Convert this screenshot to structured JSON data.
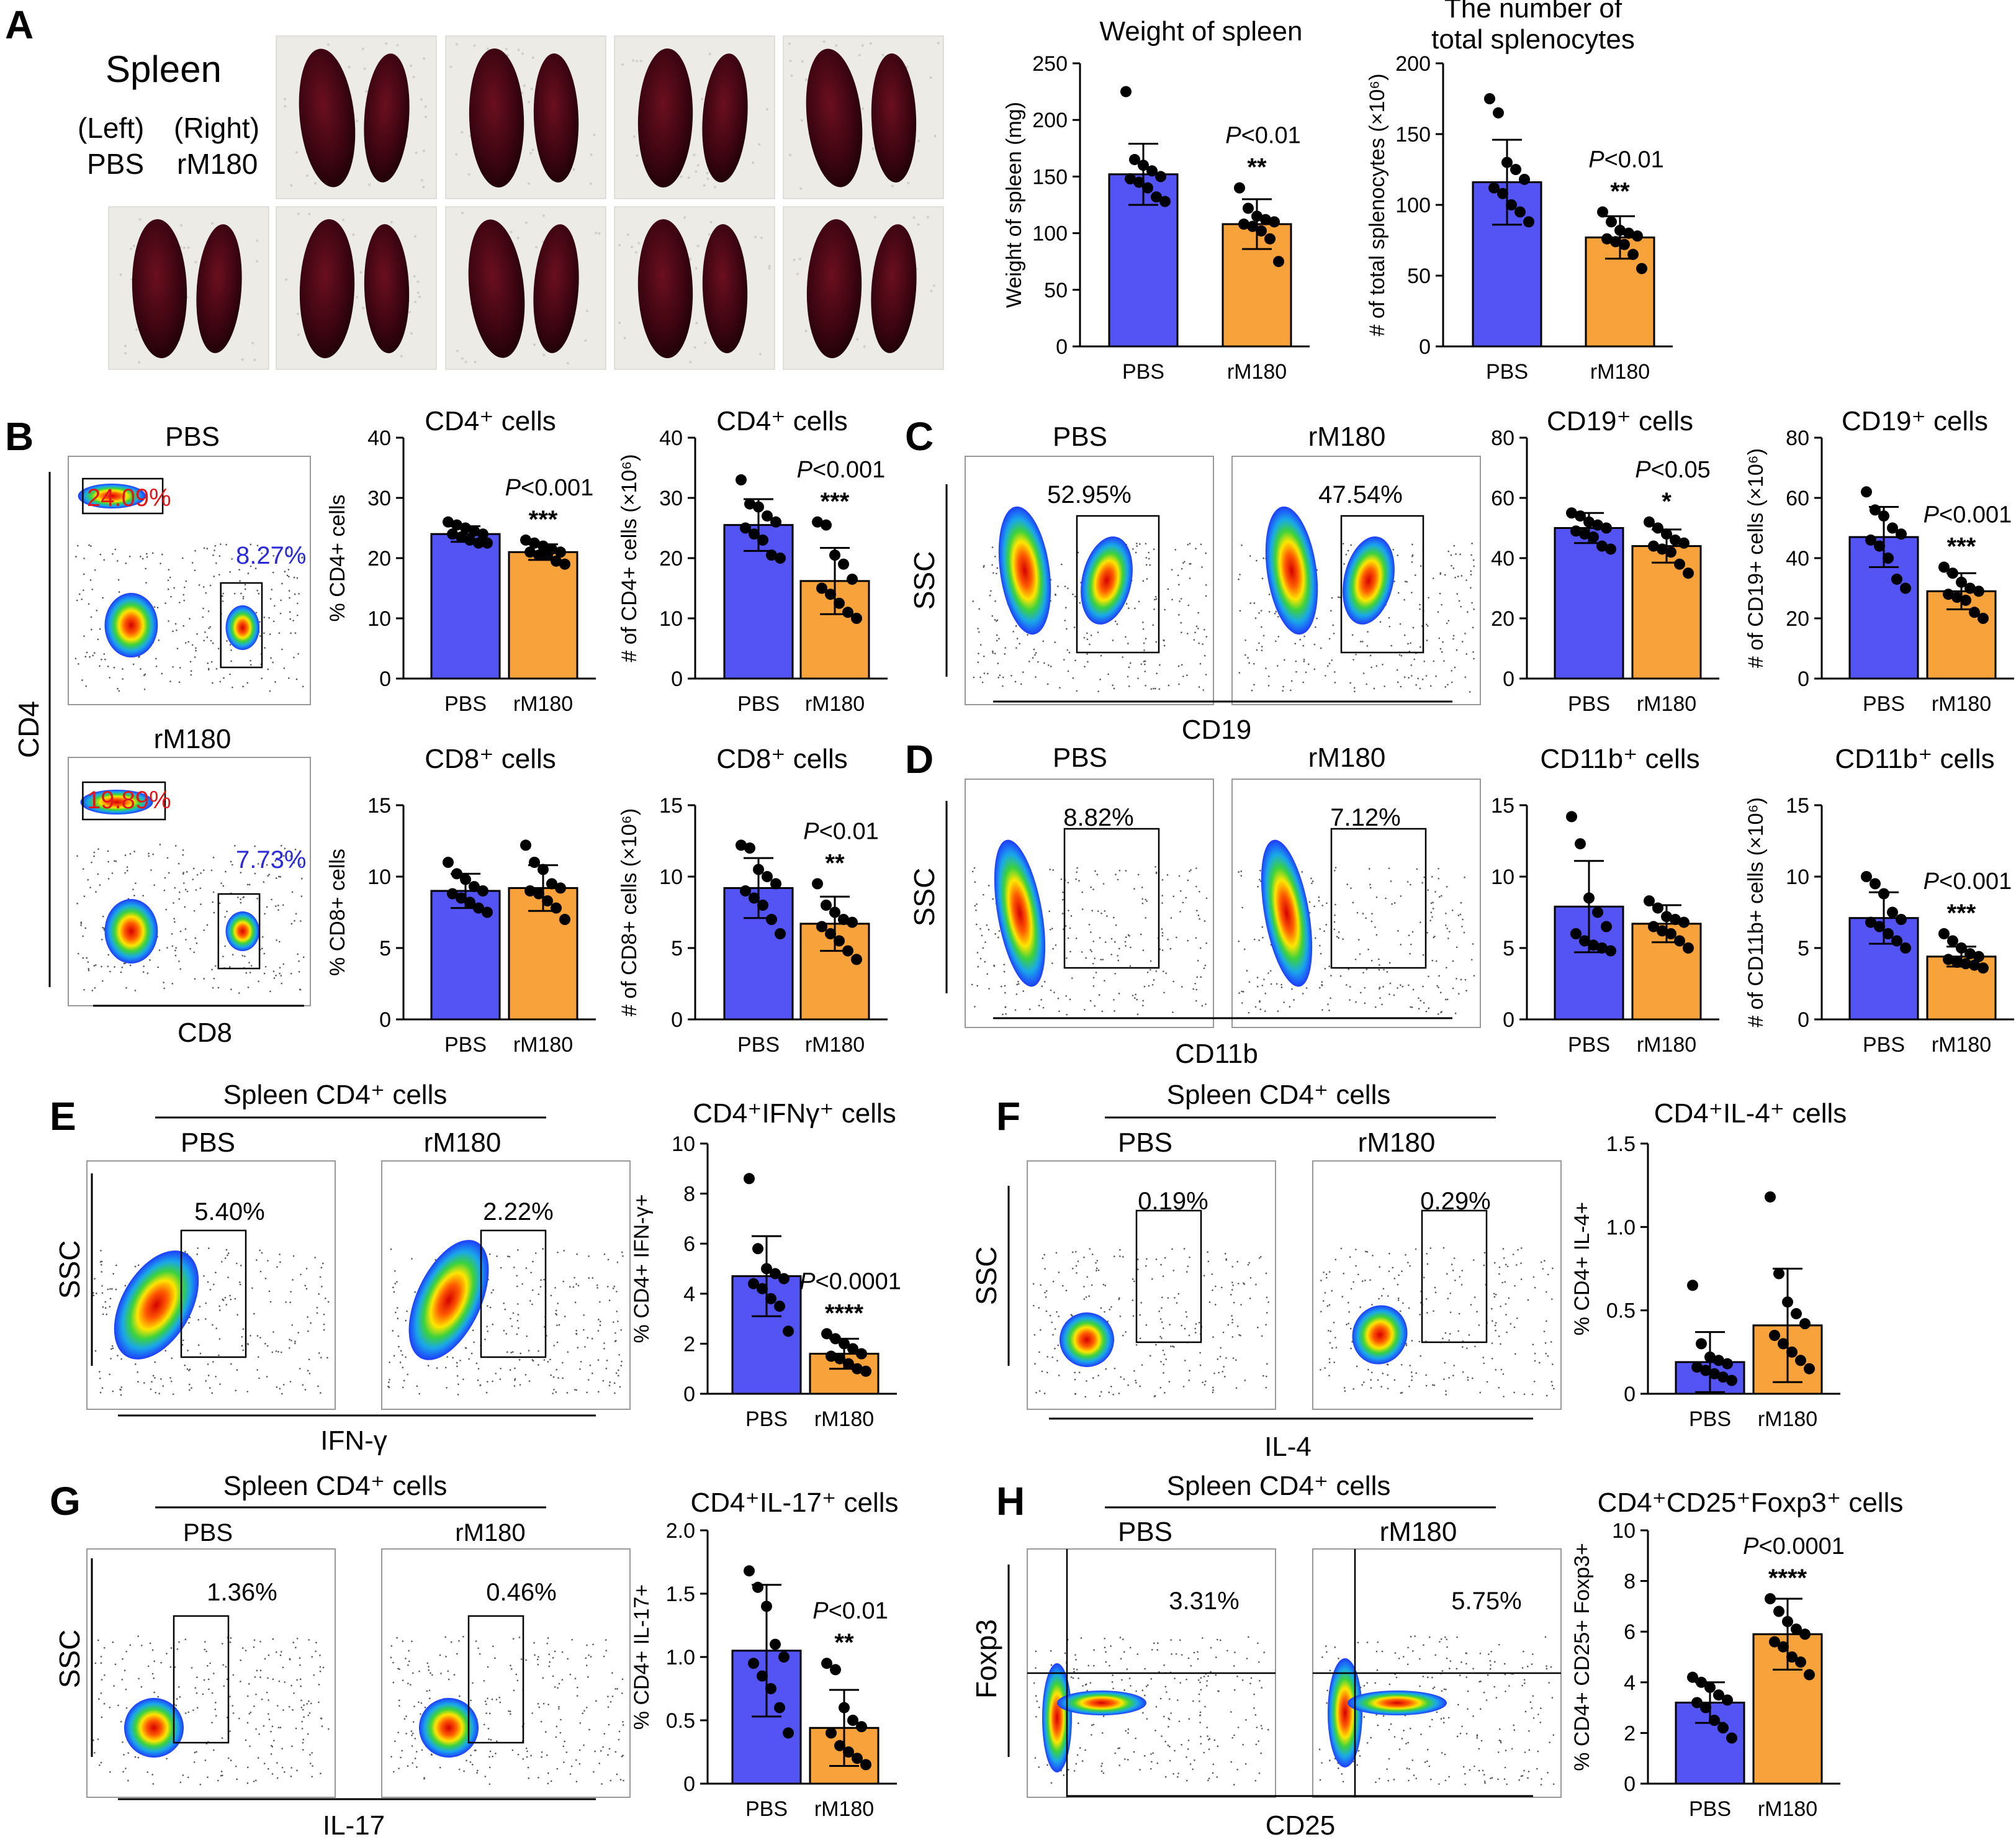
{
  "colors": {
    "pbs": "#5454f5",
    "rm180": "#f8a23b",
    "text_red": "#e0161b",
    "text_blue": "#2a2ad6"
  },
  "panels": {
    "A": {
      "letter": "A",
      "spleen_title": "Spleen",
      "left_label": "(Left)",
      "right_label": "(Right)",
      "left_group": "PBS",
      "right_group": "rM180"
    },
    "B": {
      "letter": "B",
      "plot1_title": "PBS",
      "plot2_title": "rM180",
      "y_axis": "CD4",
      "x_axis": "CD8",
      "pbs_cd4_pct": "24.09%",
      "pbs_cd8_pct": "8.27%",
      "rm180_cd4_pct": "19.89%",
      "rm180_cd8_pct": "7.73%"
    },
    "C": {
      "letter": "C",
      "plot1_title": "PBS",
      "plot2_title": "rM180",
      "y_axis": "SSC",
      "x_axis": "CD19",
      "pbs_pct": "52.95%",
      "rm180_pct": "47.54%"
    },
    "D": {
      "letter": "D",
      "plot1_title": "PBS",
      "plot2_title": "rM180",
      "y_axis": "SSC",
      "x_axis": "CD11b",
      "pbs_pct": "8.82%",
      "rm180_pct": "7.12%"
    },
    "E": {
      "letter": "E",
      "header": "Spleen CD4⁺ cells",
      "plot1_title": "PBS",
      "plot2_title": "rM180",
      "y_axis": "SSC",
      "x_axis": "IFN-γ",
      "pbs_pct": "5.40%",
      "rm180_pct": "2.22%"
    },
    "F": {
      "letter": "F",
      "header": "Spleen CD4⁺ cells",
      "plot1_title": "PBS",
      "plot2_title": "rM180",
      "y_axis": "SSC",
      "x_axis": "IL-4",
      "pbs_pct": "0.19%",
      "rm180_pct": "0.29%"
    },
    "G": {
      "letter": "G",
      "header": "Spleen CD4⁺ cells",
      "plot1_title": "PBS",
      "plot2_title": "rM180",
      "y_axis": "SSC",
      "x_axis": "IL-17",
      "pbs_pct": "1.36%",
      "rm180_pct": "0.46%"
    },
    "H": {
      "letter": "H",
      "header": "Spleen CD4⁺ cells",
      "plot1_title": "PBS",
      "plot2_title": "rM180",
      "y_axis": "Foxp3",
      "x_axis": "CD25",
      "pbs_pct": "3.31%",
      "rm180_pct": "5.75%"
    }
  },
  "chart_data": [
    {
      "id": "weight",
      "type": "bar",
      "title": "Weight of spleen",
      "ylabel": "Weight of spleen (mg)",
      "categories": [
        "PBS",
        "rM180"
      ],
      "values": [
        152,
        108
      ],
      "sd": [
        27,
        22
      ],
      "ylim": [
        0,
        250
      ],
      "ticks": [
        0,
        50,
        100,
        150,
        200,
        250
      ],
      "points": [
        [
          225,
          165,
          160,
          155,
          150,
          148,
          145,
          140,
          132,
          128
        ],
        [
          140,
          122,
          115,
          112,
          110,
          108,
          106,
          102,
          95,
          75
        ]
      ],
      "pvalue": "P<0.01",
      "stars": "**"
    },
    {
      "id": "splenocytes",
      "type": "bar",
      "title": "The number of total splenocytes",
      "ylabel": "# of total splenocytes (×10⁶)",
      "categories": [
        "PBS",
        "rM180"
      ],
      "values": [
        116,
        77
      ],
      "sd": [
        30,
        15
      ],
      "ylim": [
        0,
        200
      ],
      "ticks": [
        0,
        50,
        100,
        150,
        200
      ],
      "points": [
        [
          175,
          165,
          130,
          125,
          118,
          112,
          108,
          100,
          95,
          88
        ],
        [
          95,
          88,
          82,
          80,
          78,
          76,
          74,
          72,
          65,
          55
        ]
      ],
      "pvalue": "P<0.01",
      "stars": "**"
    },
    {
      "id": "cd4pct",
      "type": "bar",
      "title": "CD4⁺ cells",
      "ylabel": "% CD4+ cells",
      "categories": [
        "PBS",
        "rM180"
      ],
      "values": [
        24,
        21
      ],
      "sd": [
        1.3,
        1.3
      ],
      "ylim": [
        0,
        40
      ],
      "ticks": [
        0,
        10,
        20,
        30,
        40
      ],
      "points": [
        [
          26,
          25.5,
          25,
          24.5,
          24,
          24,
          23.5,
          23,
          22.5,
          22.5
        ],
        [
          23,
          22.5,
          22,
          21.5,
          21,
          21,
          20.5,
          20.5,
          19.5,
          19
        ]
      ],
      "pvalue": "P<0.001",
      "stars": "***"
    },
    {
      "id": "cd4num",
      "type": "bar",
      "title": "CD4⁺ cells",
      "ylabel": "# of CD4+ cells (×10⁶)",
      "categories": [
        "PBS",
        "rM180"
      ],
      "values": [
        25.5,
        16.2
      ],
      "sd": [
        4.3,
        5.5
      ],
      "ylim": [
        0,
        40
      ],
      "ticks": [
        0,
        10,
        20,
        30,
        40
      ],
      "points": [
        [
          33,
          29,
          28.5,
          27,
          26,
          25,
          24,
          23,
          20.5,
          20
        ],
        [
          26,
          25.5,
          20.5,
          19,
          16.5,
          15,
          14,
          12.5,
          11,
          10
        ]
      ],
      "pvalue": "P<0.001",
      "stars": "***"
    },
    {
      "id": "cd8pct",
      "type": "bar",
      "title": "CD8⁺ cells",
      "ylabel": "% CD8+ cells",
      "categories": [
        "PBS",
        "rM180"
      ],
      "values": [
        9,
        9.2
      ],
      "sd": [
        1.2,
        1.6
      ],
      "ylim": [
        0,
        15
      ],
      "ticks": [
        0,
        5,
        10,
        15
      ],
      "points": [
        [
          11,
          10.2,
          9.8,
          9.3,
          9,
          8.8,
          8.5,
          8.2,
          7.8,
          7.5
        ],
        [
          12.2,
          11,
          10.5,
          9.5,
          9.2,
          9,
          8.8,
          8.3,
          7.8,
          7
        ]
      ],
      "pvalue": "",
      "stars": ""
    },
    {
      "id": "cd8num",
      "type": "bar",
      "title": "CD8⁺ cells",
      "ylabel": "# of CD8+ cells (×10⁶)",
      "categories": [
        "PBS",
        "rM180"
      ],
      "values": [
        9.2,
        6.7
      ],
      "sd": [
        2.1,
        1.9
      ],
      "ylim": [
        0,
        15
      ],
      "ticks": [
        0,
        5,
        10,
        15
      ],
      "points": [
        [
          12.2,
          12,
          10.5,
          10,
          9.5,
          9,
          8.5,
          8,
          7,
          6
        ],
        [
          9.5,
          8,
          7.5,
          7,
          6.8,
          6.5,
          6,
          5.5,
          4.8,
          4.2
        ]
      ],
      "pvalue": "P<0.01",
      "stars": "**"
    },
    {
      "id": "cd19pct",
      "type": "bar",
      "title": "CD19⁺ cells",
      "ylabel": "% CD19+ cells",
      "categories": [
        "PBS",
        "rM180"
      ],
      "values": [
        50,
        44
      ],
      "sd": [
        5,
        5.5
      ],
      "ylim": [
        0,
        80
      ],
      "ticks": [
        0,
        20,
        40,
        60,
        80
      ],
      "points": [
        [
          55,
          54,
          52,
          51,
          50,
          49,
          48,
          47,
          44,
          43
        ],
        [
          52,
          50,
          48,
          46,
          45,
          44,
          43,
          42,
          38,
          35
        ]
      ],
      "pvalue": "P<0.05",
      "stars": "*"
    },
    {
      "id": "cd19num",
      "type": "bar",
      "title": "CD19⁺ cells",
      "ylabel": "# of CD19+ cells (×10⁶)",
      "categories": [
        "PBS",
        "rM180"
      ],
      "values": [
        47,
        29
      ],
      "sd": [
        10,
        6
      ],
      "ylim": [
        0,
        80
      ],
      "ticks": [
        0,
        20,
        40,
        60,
        80
      ],
      "points": [
        [
          62,
          56,
          54,
          50,
          48,
          46,
          44,
          40,
          33,
          30
        ],
        [
          37,
          35,
          32,
          30,
          29,
          28,
          27,
          26,
          22,
          20
        ]
      ],
      "pvalue": "P<0.001",
      "stars": "***"
    },
    {
      "id": "cd11bpct",
      "type": "bar",
      "title": "CD11b⁺ cells",
      "ylabel": "% CD11b+ cells",
      "categories": [
        "PBS",
        "rM180"
      ],
      "values": [
        7.9,
        6.7
      ],
      "sd": [
        3.2,
        1.3
      ],
      "ylim": [
        0,
        15
      ],
      "ticks": [
        0,
        5,
        10,
        15
      ],
      "points": [
        [
          14.2,
          12.3,
          8.5,
          7.5,
          6.5,
          6,
          5.5,
          5.2,
          5,
          4.8
        ],
        [
          8.3,
          7.8,
          7.2,
          7,
          6.8,
          6.5,
          6.2,
          6,
          5.5,
          5
        ]
      ],
      "pvalue": "",
      "stars": ""
    },
    {
      "id": "cd11bnum",
      "type": "bar",
      "title": "CD11b⁺ cells",
      "ylabel": "# of CD11b+ cells (×10⁶)",
      "categories": [
        "PBS",
        "rM180"
      ],
      "values": [
        7.1,
        4.4
      ],
      "sd": [
        1.8,
        0.7
      ],
      "ylim": [
        0,
        15
      ],
      "ticks": [
        0,
        5,
        10,
        15
      ],
      "points": [
        [
          10,
          9.5,
          8.8,
          7.5,
          7,
          6.8,
          6.5,
          6,
          5.5,
          5
        ],
        [
          6,
          5.5,
          5,
          4.6,
          4.4,
          4.2,
          4,
          3.9,
          3.8,
          3.6
        ]
      ],
      "pvalue": "P<0.001",
      "stars": "***"
    },
    {
      "id": "ifng",
      "type": "bar",
      "title": "CD4⁺IFNγ⁺ cells",
      "ylabel": "% CD4+ IFN-γ+",
      "categories": [
        "PBS",
        "rM180"
      ],
      "values": [
        4.7,
        1.6
      ],
      "sd": [
        1.6,
        0.6
      ],
      "ylim": [
        0,
        10
      ],
      "ticks": [
        0,
        2,
        4,
        6,
        8,
        10
      ],
      "points": [
        [
          8.6,
          5.8,
          5,
          4.8,
          4.6,
          4.4,
          4.2,
          3.8,
          3.5,
          2.5
        ],
        [
          2.4,
          2.2,
          2,
          1.8,
          1.6,
          1.5,
          1.4,
          1.2,
          1,
          0.9
        ]
      ],
      "pvalue": "P<0.0001",
      "stars": "****"
    },
    {
      "id": "il4",
      "type": "bar",
      "title": "CD4⁺IL-4⁺ cells",
      "ylabel": "% CD4+ IL-4+",
      "categories": [
        "PBS",
        "rM180"
      ],
      "values": [
        0.19,
        0.41
      ],
      "sd": [
        0.18,
        0.34
      ],
      "ylim": [
        0,
        1.5
      ],
      "ticks": [
        0,
        0.5,
        1.0,
        1.5
      ],
      "points": [
        [
          0.65,
          0.3,
          0.22,
          0.2,
          0.18,
          0.16,
          0.14,
          0.12,
          0.1,
          0.08
        ],
        [
          1.18,
          0.72,
          0.55,
          0.48,
          0.42,
          0.35,
          0.3,
          0.25,
          0.2,
          0.15
        ]
      ],
      "pvalue": "",
      "stars": ""
    },
    {
      "id": "il17",
      "type": "bar",
      "title": "CD4⁺IL-17⁺ cells",
      "ylabel": "% CD4+ IL-17+",
      "categories": [
        "PBS",
        "rM180"
      ],
      "values": [
        1.05,
        0.44
      ],
      "sd": [
        0.52,
        0.3
      ],
      "ylim": [
        0,
        2.0
      ],
      "ticks": [
        0,
        0.5,
        1.0,
        1.5,
        2.0
      ],
      "points": [
        [
          1.68,
          1.55,
          1.4,
          1.1,
          1.0,
          0.95,
          0.85,
          0.75,
          0.6,
          0.4
        ],
        [
          0.95,
          0.9,
          0.6,
          0.5,
          0.45,
          0.4,
          0.3,
          0.25,
          0.2,
          0.15
        ]
      ],
      "pvalue": "P<0.01",
      "stars": "**"
    },
    {
      "id": "treg",
      "type": "bar",
      "title": "CD4⁺CD25⁺Foxp3⁺ cells",
      "ylabel": "% CD4+ CD25+ Foxp3+",
      "categories": [
        "PBS",
        "rM180"
      ],
      "values": [
        3.2,
        5.9
      ],
      "sd": [
        0.8,
        1.4
      ],
      "ylim": [
        0,
        10
      ],
      "ticks": [
        0,
        2,
        4,
        6,
        8,
        10
      ],
      "points": [
        [
          4.2,
          4,
          3.8,
          3.5,
          3.3,
          3.2,
          3,
          2.5,
          2.2,
          1.8
        ],
        [
          7.3,
          6.8,
          6.4,
          6.1,
          5.9,
          5.6,
          5.4,
          5,
          4.8,
          4.3
        ]
      ],
      "pvalue": "P<0.0001",
      "stars": "****"
    }
  ]
}
